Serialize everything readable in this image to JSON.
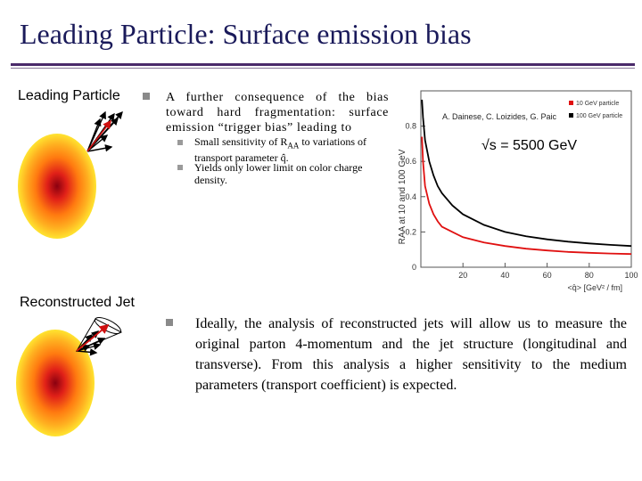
{
  "slide": {
    "title": "Leading Particle: Surface emission bias",
    "left": {
      "leading_label": "Leading Particle",
      "reco_label": "Reconstructed Jet"
    },
    "bullet1": "A further consequence of the bias toward hard fragmentation: surface emission “trigger bias” leading to",
    "sub1_pre": "Small sensitivity of R",
    "sub1_subscript": "AA",
    "sub1_post": " to variations of transport parameter q̂.",
    "sub2": "Yields only lower limit on color charge density.",
    "bullet2": "Ideally, the analysis of reconstructed jets will allow us to measure the original parton 4-momentum and the jet structure (longitudinal and transverse). From this analysis a higher sensitivity to the medium parameters (transport coefficient) is expected."
  },
  "chart_data": {
    "type": "line",
    "authors": "A. Dainese, C. Loizides, G. Paic",
    "energy_label": "√s = 5500 GeV",
    "ylabel": "RAA at 10 and 100 GeV",
    "xlabel": "<q̂> [GeV² / fm]",
    "xlim": [
      0,
      100
    ],
    "ylim": [
      0,
      1
    ],
    "x_ticks": [
      "20",
      "40",
      "60",
      "80",
      "100"
    ],
    "y_ticks": [
      "0",
      "0.2",
      "0.4",
      "0.6",
      "0.8"
    ],
    "x": [
      0.5,
      1,
      2,
      4,
      6,
      8,
      10,
      15,
      20,
      30,
      40,
      50,
      60,
      70,
      80,
      90,
      100
    ],
    "series": [
      {
        "name": "10 GeV particle",
        "color": "#e01010",
        "values": [
          0.74,
          0.6,
          0.46,
          0.36,
          0.3,
          0.26,
          0.23,
          0.2,
          0.17,
          0.14,
          0.12,
          0.105,
          0.095,
          0.087,
          0.082,
          0.078,
          0.075
        ]
      },
      {
        "name": "100 GeV particle",
        "color": "#000000",
        "values": [
          0.95,
          0.85,
          0.72,
          0.6,
          0.52,
          0.46,
          0.42,
          0.35,
          0.3,
          0.24,
          0.2,
          0.175,
          0.158,
          0.145,
          0.135,
          0.127,
          0.12
        ]
      }
    ]
  }
}
